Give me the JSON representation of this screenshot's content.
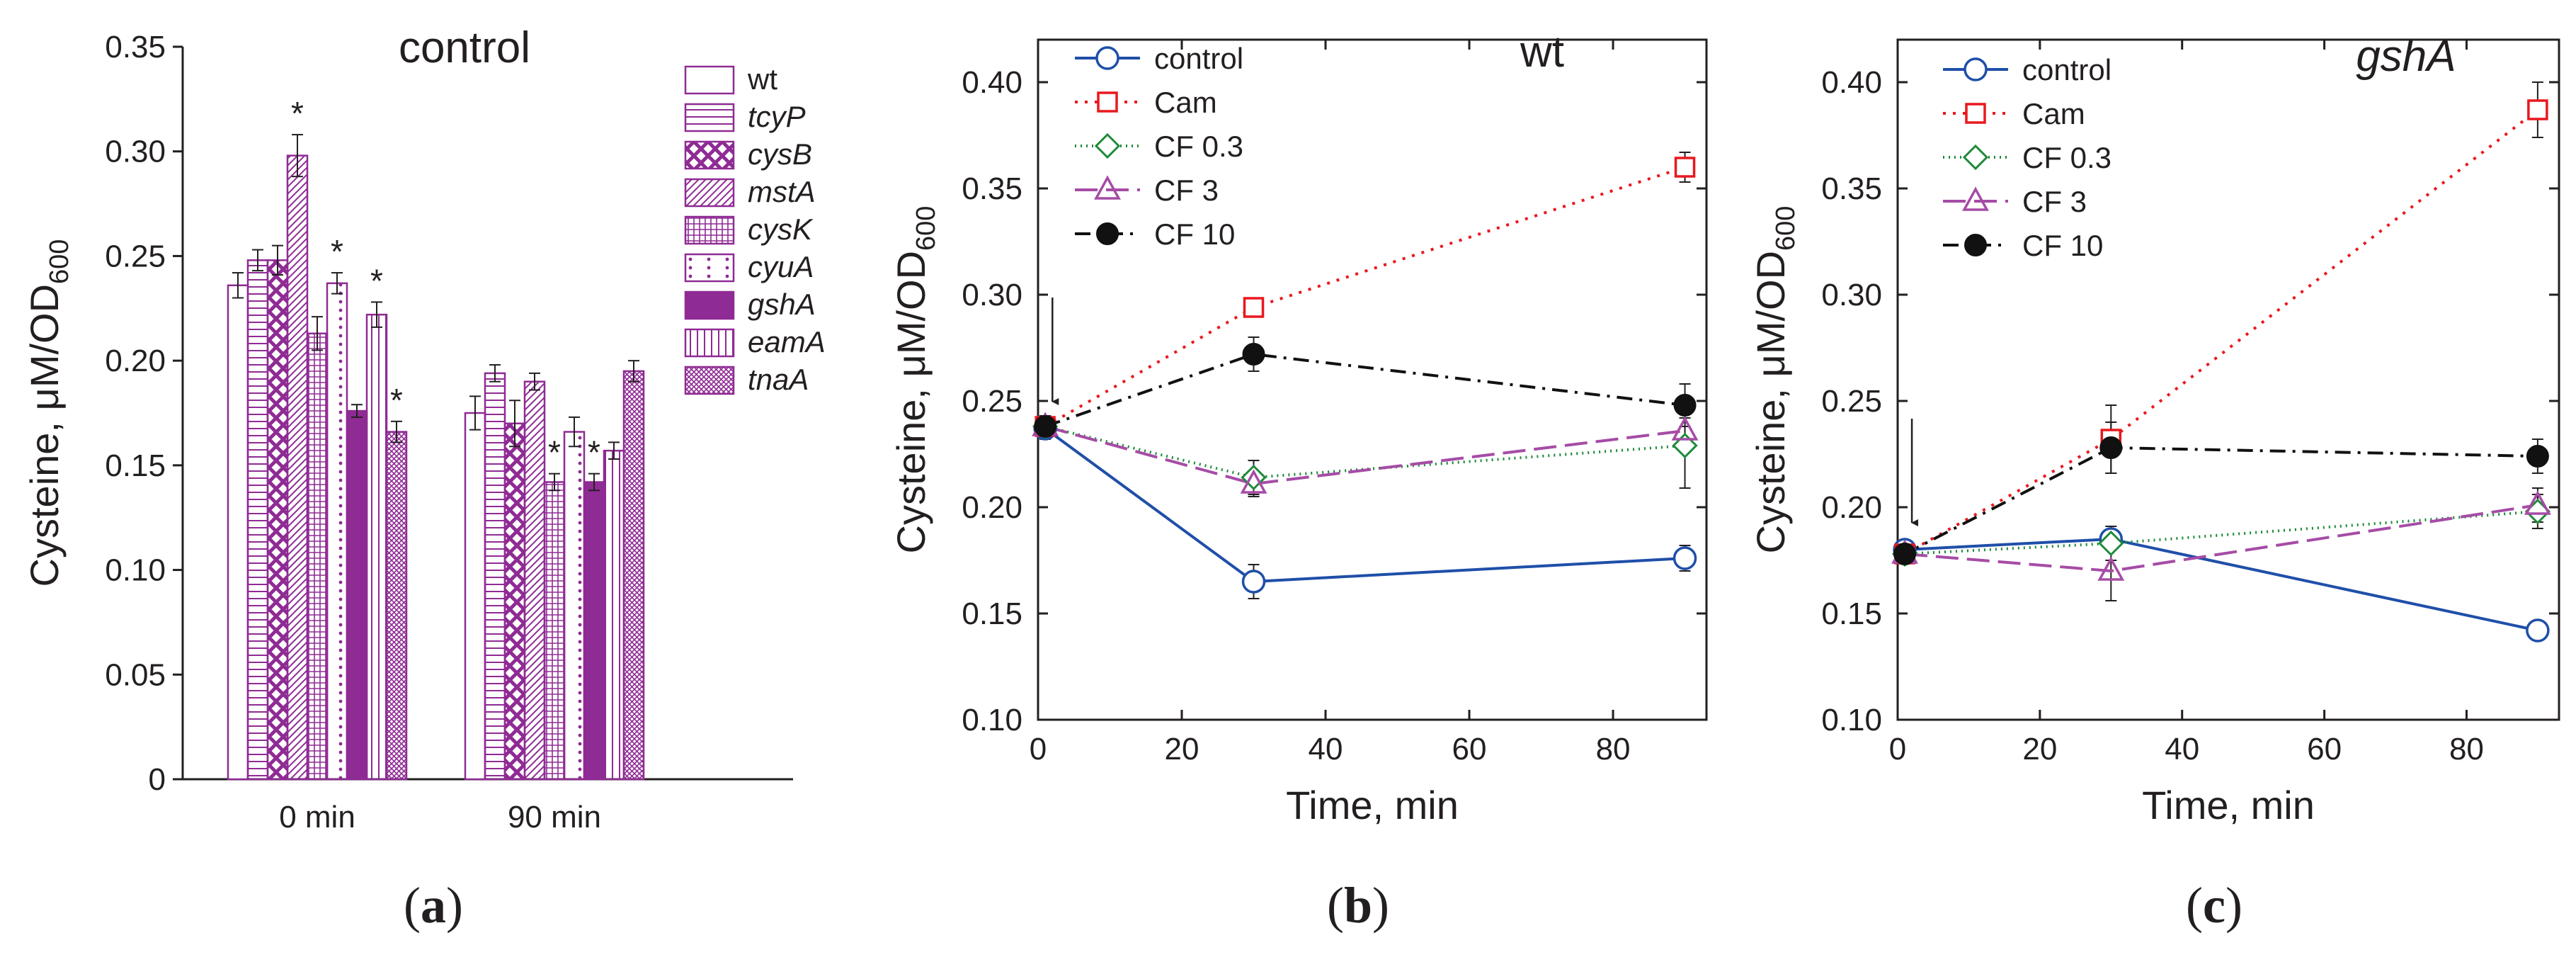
{
  "figure": {
    "ylabel_main": "Cysteine, μM/OD",
    "ylabel_sub": "600",
    "xlabel_time": "Time, min",
    "panel_labels": [
      {
        "open": "(",
        "letter": "a",
        "close": ")"
      },
      {
        "open": "(",
        "letter": "b",
        "close": ")"
      },
      {
        "open": "(",
        "letter": "c",
        "close": ")"
      }
    ]
  },
  "chart_data": [
    {
      "id": "a",
      "type": "bar",
      "title": "control",
      "title_italic": false,
      "ylabel": "Cysteine, μM/OD600",
      "ylim": [
        0,
        0.35
      ],
      "yticks": [
        "0",
        "0.05",
        "0.10",
        "0.15",
        "0.20",
        "0.25",
        "0.30",
        "0.35"
      ],
      "categories": [
        "0 min",
        "90 min"
      ],
      "series": [
        {
          "name": "wt",
          "italic": false,
          "pattern": "none",
          "values": [
            0.236,
            0.175
          ],
          "errors": [
            0.006,
            0.008
          ],
          "sig": [
            false,
            false
          ]
        },
        {
          "name": "tcyP",
          "italic": true,
          "pattern": "hlines",
          "values": [
            0.248,
            0.194
          ],
          "errors": [
            0.005,
            0.004
          ],
          "sig": [
            false,
            false
          ]
        },
        {
          "name": "cysB",
          "italic": true,
          "pattern": "cross",
          "values": [
            0.248,
            0.17
          ],
          "errors": [
            0.007,
            0.011
          ],
          "sig": [
            false,
            false
          ]
        },
        {
          "name": "mstA",
          "italic": true,
          "pattern": "diag",
          "values": [
            0.298,
            0.19
          ],
          "errors": [
            0.01,
            0.004
          ],
          "sig": [
            true,
            false
          ]
        },
        {
          "name": "cysK",
          "italic": true,
          "pattern": "grid",
          "values": [
            0.213,
            0.142
          ],
          "errors": [
            0.008,
            0.004
          ],
          "sig": [
            false,
            true
          ]
        },
        {
          "name": "cyuA",
          "italic": true,
          "pattern": "dots",
          "values": [
            0.237,
            0.166
          ],
          "errors": [
            0.005,
            0.007
          ],
          "sig": [
            true,
            false
          ]
        },
        {
          "name": "gshA",
          "italic": true,
          "pattern": "solid",
          "values": [
            0.176,
            0.142
          ],
          "errors": [
            0.003,
            0.004
          ],
          "sig": [
            false,
            true
          ]
        },
        {
          "name": "eamA",
          "italic": true,
          "pattern": "vlines",
          "values": [
            0.222,
            0.157
          ],
          "errors": [
            0.006,
            0.004
          ],
          "sig": [
            true,
            false
          ]
        },
        {
          "name": "tnaA",
          "italic": true,
          "pattern": "dense",
          "values": [
            0.166,
            0.195
          ],
          "errors": [
            0.005,
            0.005
          ],
          "sig": [
            true,
            false
          ]
        }
      ],
      "annotation_symbol": "*"
    },
    {
      "id": "b",
      "type": "line",
      "title": "wt",
      "title_italic": false,
      "xlabel": "Time, min",
      "ylabel": "Cysteine, μM/OD600",
      "xlim": [
        0,
        93
      ],
      "ylim": [
        0.1,
        0.42
      ],
      "xticks": [
        0,
        20,
        40,
        60,
        80
      ],
      "yticks": [
        "0.10",
        "0.15",
        "0.20",
        "0.25",
        "0.30",
        "0.35",
        "0.40"
      ],
      "arrow_at_x": 2,
      "series": [
        {
          "name": "control",
          "color": "#1f4fa8",
          "dash": "",
          "marker": "circle-open",
          "x": [
            1,
            30,
            90
          ],
          "y": [
            0.237,
            0.165,
            0.176
          ],
          "err": [
            0.005,
            0.008,
            0.006
          ]
        },
        {
          "name": "Cam",
          "color": "#e8191f",
          "dash": "4 10",
          "marker": "square-open",
          "x": [
            1,
            30,
            90
          ],
          "y": [
            0.238,
            0.294,
            0.36
          ],
          "err": [
            0.005,
            0.004,
            0.007
          ]
        },
        {
          "name": "CF 0.3",
          "color": "#1e8a3a",
          "dash": "2 6",
          "marker": "diamond-open",
          "x": [
            1,
            30,
            90
          ],
          "y": [
            0.238,
            0.214,
            0.229
          ],
          "err": [
            0.005,
            0.008,
            0.02
          ]
        },
        {
          "name": "CF 3",
          "color": "#a64ca6",
          "dash": "32 12",
          "marker": "triangle-open",
          "x": [
            1,
            30,
            90
          ],
          "y": [
            0.238,
            0.211,
            0.236
          ],
          "err": [
            0.005,
            0.006,
            0.006
          ]
        },
        {
          "name": "CF 10",
          "color": "#111111",
          "dash": "22 10 4 10",
          "marker": "circle-filled",
          "x": [
            1,
            30,
            90
          ],
          "y": [
            0.238,
            0.272,
            0.248
          ],
          "err": [
            0.005,
            0.008,
            0.01
          ]
        }
      ]
    },
    {
      "id": "c",
      "type": "line",
      "title": "gshA",
      "title_italic": true,
      "xlabel": "Time, min",
      "ylabel": "Cysteine, μM/OD600",
      "xlim": [
        0,
        93
      ],
      "ylim": [
        0.1,
        0.42
      ],
      "xticks": [
        0,
        20,
        40,
        60,
        80
      ],
      "yticks": [
        "0.10",
        "0.15",
        "0.20",
        "0.25",
        "0.30",
        "0.35",
        "0.40"
      ],
      "arrow_at_x": 2,
      "series": [
        {
          "name": "control",
          "color": "#1f4fa8",
          "dash": "",
          "marker": "circle-open",
          "x": [
            1,
            30,
            90
          ],
          "y": [
            0.18,
            0.185,
            0.142
          ],
          "err": [
            0.004,
            0.004,
            0.004
          ]
        },
        {
          "name": "Cam",
          "color": "#e8191f",
          "dash": "4 10",
          "marker": "square-open",
          "x": [
            1,
            30,
            90
          ],
          "y": [
            0.178,
            0.232,
            0.387
          ],
          "err": [
            0.004,
            0.016,
            0.013
          ]
        },
        {
          "name": "CF 0.3",
          "color": "#1e8a3a",
          "dash": "2 6",
          "marker": "diamond-open",
          "x": [
            1,
            30,
            90
          ],
          "y": [
            0.178,
            0.183,
            0.198
          ],
          "err": [
            0.004,
            0.008,
            0.008
          ]
        },
        {
          "name": "CF 3",
          "color": "#a64ca6",
          "dash": "32 12",
          "marker": "triangle-open",
          "x": [
            1,
            30,
            90
          ],
          "y": [
            0.178,
            0.17,
            0.201
          ],
          "err": [
            0.004,
            0.014,
            0.008
          ]
        },
        {
          "name": "CF 10",
          "color": "#111111",
          "dash": "22 10 4 10",
          "marker": "circle-filled",
          "x": [
            1,
            30,
            90
          ],
          "y": [
            0.178,
            0.228,
            0.224
          ],
          "err": [
            0.004,
            0.012,
            0.008
          ]
        }
      ]
    }
  ]
}
